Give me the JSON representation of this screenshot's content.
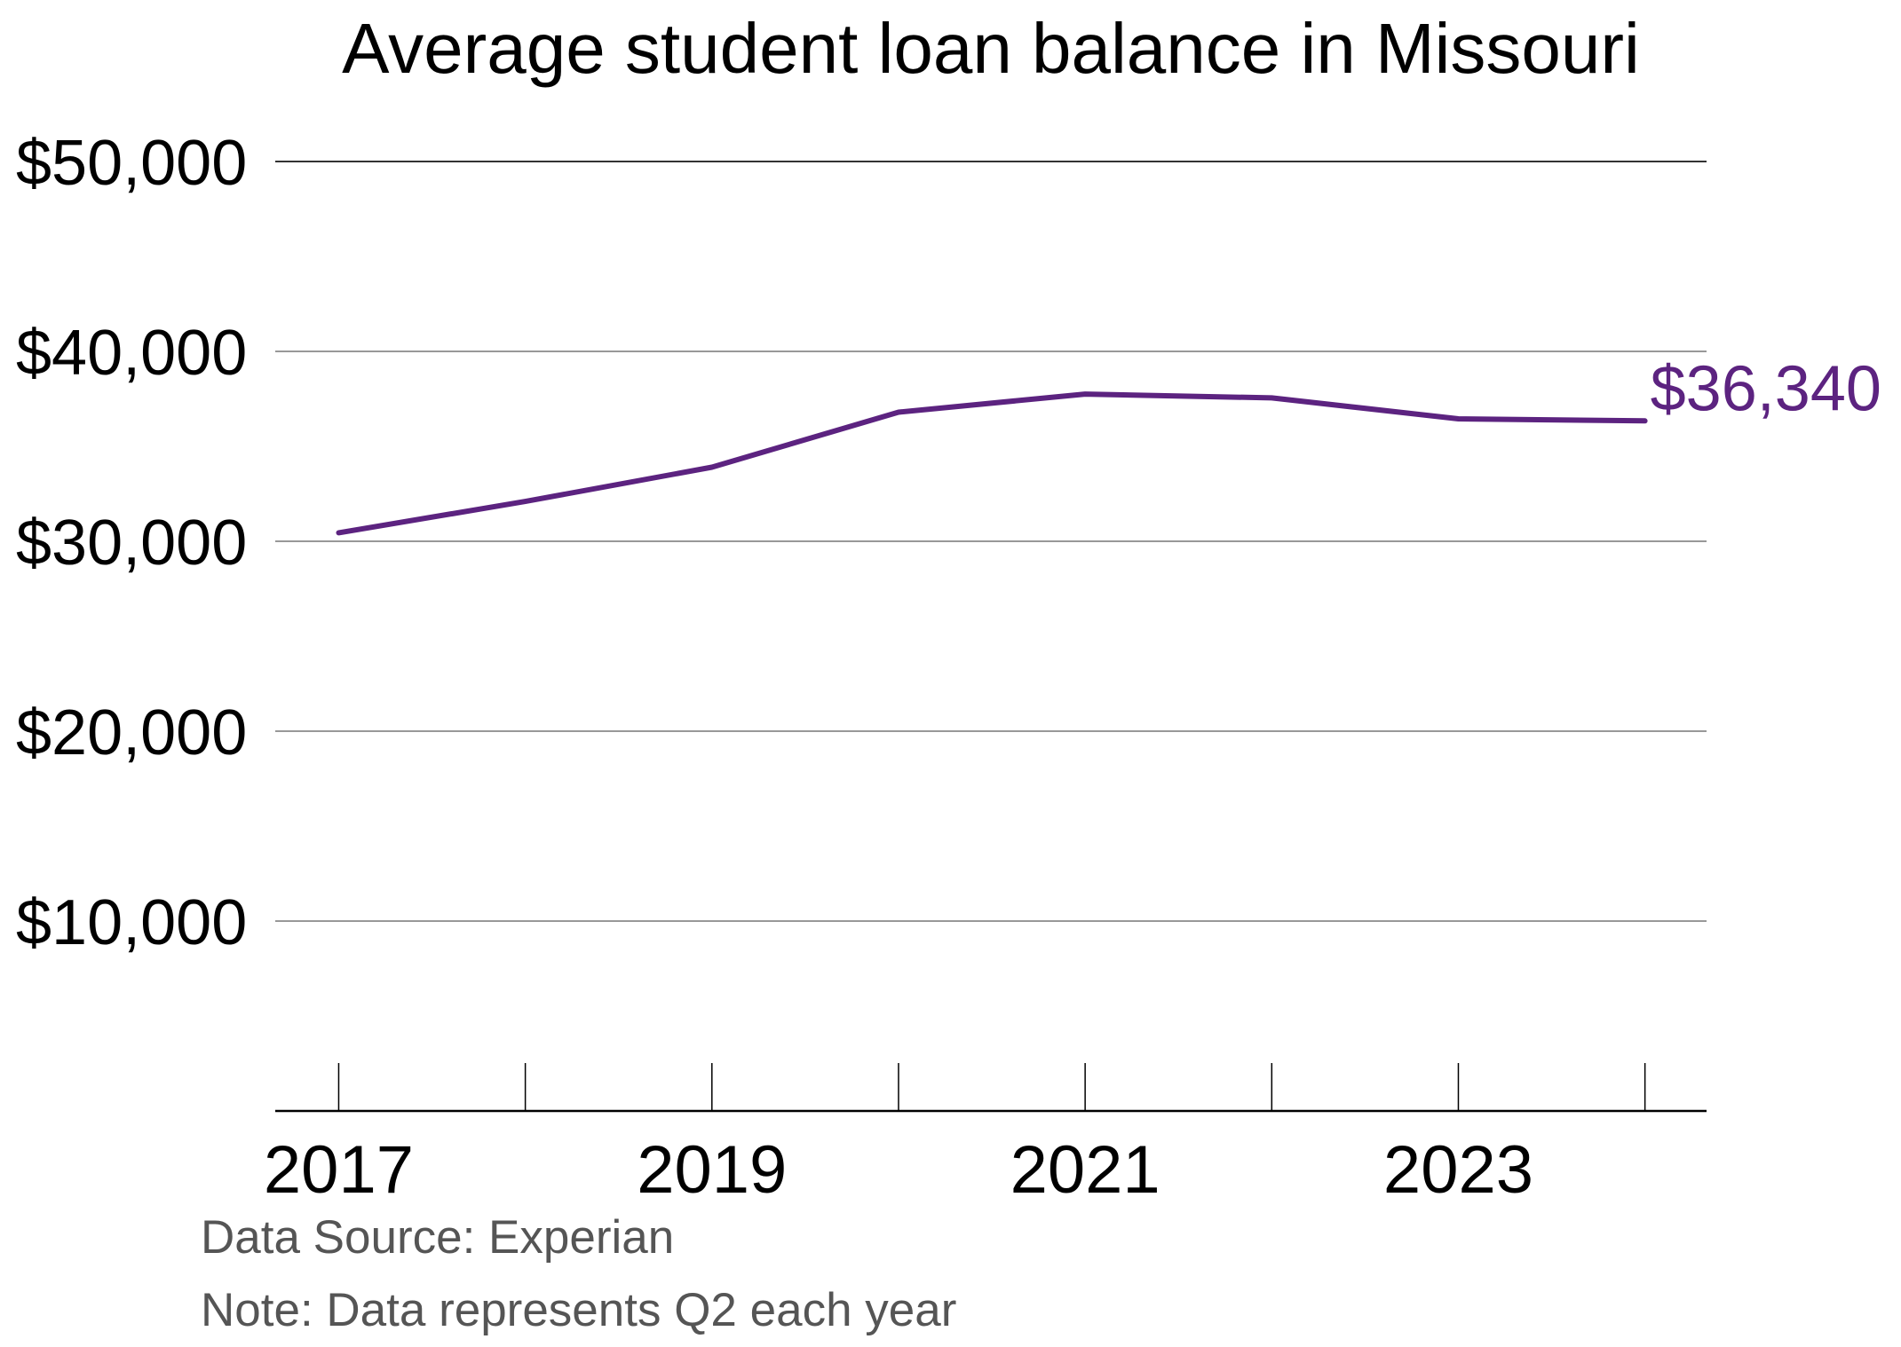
{
  "chart_data": {
    "type": "line",
    "title": "Average student loan balance in Missouri",
    "xlabel": "",
    "ylabel": "",
    "x": [
      2017,
      2018,
      2019,
      2020,
      2021,
      2022,
      2023,
      2024
    ],
    "x_tick_labels": [
      "2017",
      "2019",
      "2021",
      "2023"
    ],
    "y_tick_labels": [
      "$10,000",
      "$20,000",
      "$30,000",
      "$40,000",
      "$50,000"
    ],
    "y_ticks": [
      10000,
      20000,
      30000,
      40000,
      50000
    ],
    "ylim": [
      0,
      50000
    ],
    "xlim": [
      2016.66,
      2024.33
    ],
    "grid": true,
    "series": [
      {
        "values": [
          30450,
          32100,
          33900,
          36800,
          37750,
          37550,
          36450,
          36340
        ],
        "color": "#5c2380"
      }
    ],
    "end_label": "$36,340"
  },
  "source": "Data Source: Experian",
  "note": "Note: Data represents Q2 each year"
}
